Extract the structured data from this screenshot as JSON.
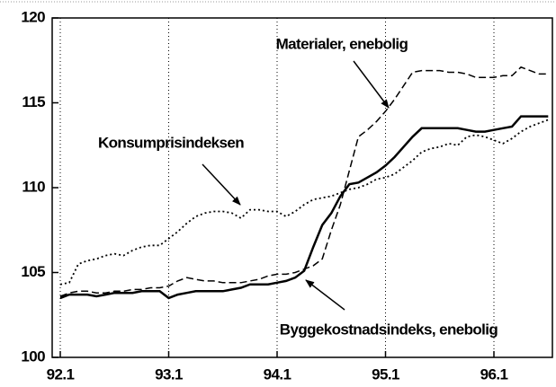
{
  "chart_data": {
    "type": "line",
    "categories": [
      "92.1",
      null,
      null,
      null,
      null,
      null,
      null,
      null,
      null,
      null,
      null,
      null,
      "93.1",
      null,
      null,
      null,
      null,
      null,
      null,
      null,
      null,
      null,
      null,
      null,
      "94.1",
      null,
      null,
      null,
      null,
      null,
      null,
      null,
      null,
      null,
      null,
      null,
      "95.1",
      null,
      null,
      null,
      null,
      null,
      null,
      null,
      null,
      null,
      null,
      null,
      "96.1",
      null,
      null,
      null,
      null,
      null,
      null
    ],
    "series": [
      {
        "name": "Materialer, enebolig",
        "color": "#000000",
        "dash": "dashed",
        "values": [
          103.6,
          103.8,
          103.9,
          103.9,
          103.8,
          103.8,
          103.9,
          103.9,
          104.0,
          104.0,
          104.1,
          104.1,
          104.2,
          104.5,
          104.7,
          104.6,
          104.5,
          104.5,
          104.4,
          104.4,
          104.4,
          104.5,
          104.6,
          104.8,
          104.9,
          104.9,
          105.0,
          105.2,
          105.4,
          105.8,
          107.5,
          109.0,
          111.0,
          113.0,
          113.4,
          113.9,
          114.5,
          115.2,
          116.0,
          116.8,
          116.9,
          116.9,
          116.9,
          116.8,
          116.8,
          116.7,
          116.5,
          116.5,
          116.5,
          116.6,
          116.6,
          117.1,
          116.9,
          116.7,
          116.7
        ]
      },
      {
        "name": "Konsumprisindeksen",
        "color": "#000000",
        "dash": "dotted",
        "values": [
          104.3,
          104.4,
          105.5,
          105.7,
          105.8,
          106.0,
          106.1,
          106.0,
          106.3,
          106.5,
          106.6,
          106.6,
          107.0,
          107.4,
          107.9,
          108.3,
          108.5,
          108.6,
          108.6,
          108.5,
          108.2,
          108.7,
          108.7,
          108.6,
          108.6,
          108.3,
          108.6,
          109.0,
          109.3,
          109.4,
          109.5,
          109.7,
          109.9,
          110.0,
          110.2,
          110.5,
          110.6,
          110.8,
          111.2,
          111.6,
          112.1,
          112.3,
          112.4,
          112.6,
          112.5,
          113.0,
          113.1,
          113.0,
          112.8,
          112.6,
          112.9,
          113.3,
          113.6,
          113.8,
          114.0
        ]
      },
      {
        "name": "Byggekostnadsindeks, enebolig",
        "color": "#000000",
        "dash": "solid",
        "values": [
          103.5,
          103.7,
          103.7,
          103.7,
          103.6,
          103.7,
          103.8,
          103.8,
          103.8,
          103.9,
          103.9,
          103.9,
          103.5,
          103.7,
          103.8,
          103.9,
          103.9,
          103.9,
          103.9,
          104.0,
          104.1,
          104.3,
          104.3,
          104.3,
          104.4,
          104.5,
          104.7,
          105.1,
          106.5,
          107.8,
          108.5,
          109.5,
          110.2,
          110.3,
          110.6,
          110.9,
          111.3,
          111.8,
          112.4,
          113.0,
          113.5,
          113.5,
          113.5,
          113.5,
          113.5,
          113.4,
          113.3,
          113.3,
          113.4,
          113.5,
          113.6,
          114.2,
          114.2,
          114.2,
          114.2
        ]
      }
    ],
    "ylim": [
      100,
      120
    ],
    "yticks": [
      100,
      105,
      110,
      115,
      120
    ],
    "grid": "vertical-dotted"
  }
}
